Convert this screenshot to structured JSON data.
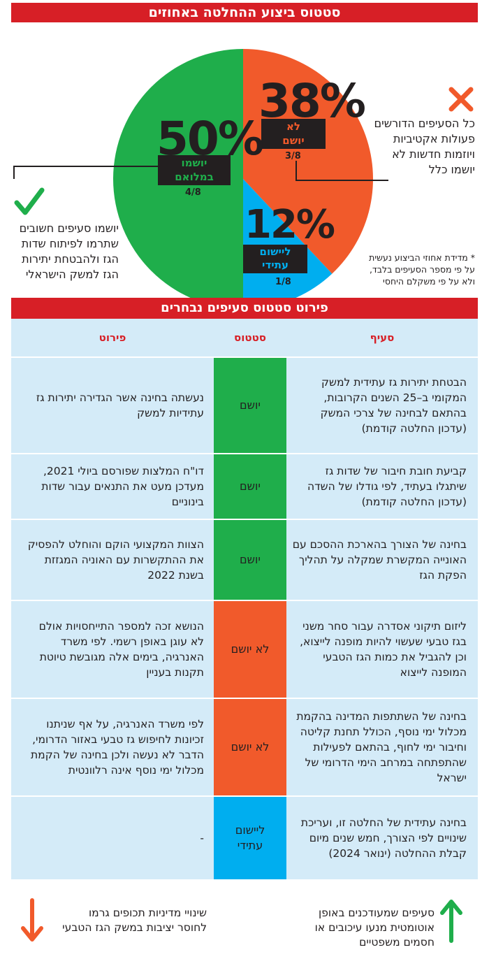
{
  "title": "סטטוס ביצוע ההחלטה באחוזים",
  "chart_data": {
    "type": "pie",
    "title": "סטטוס ביצוע ההחלטה באחוזים",
    "slices": [
      {
        "label": "לא יושם",
        "value": 38,
        "fraction": "3/8",
        "percent_label": "38%",
        "color": "#f15a2b"
      },
      {
        "label": "ליישום עתידי",
        "value": 12,
        "fraction": "1/8",
        "percent_label": "12%",
        "color": "#00aeef"
      },
      {
        "label": "יושמו במלואם",
        "value": 50,
        "fraction": "4/8",
        "percent_label": "50%",
        "color": "#1fae4b"
      }
    ]
  },
  "pie_labels": {
    "not_implemented": {
      "pct": "38%",
      "label_line1": "לא",
      "label_line2": "יושם",
      "frac": "3/8"
    },
    "future": {
      "pct": "12%",
      "label_line1": "ליישום",
      "label_line2": "עתידי",
      "frac": "1/8"
    },
    "full": {
      "pct": "50%",
      "label_line1": "יושמו",
      "label_line2": "במלואם",
      "frac": "4/8"
    }
  },
  "annotations": {
    "right_lines": [
      "כל הסעיפים הדורשים",
      "פעולות אקטיביות",
      "ויוזמות חדשות לא",
      "יושמו כלל"
    ],
    "left_lines": [
      "יושמו סעיפים חשובים",
      "שתרמו לפיתוח שדות",
      "הגז ולהבטחת יתירות",
      "הגז למשק הישראלי"
    ],
    "note_lines": [
      "* מדידת אחוזי הביצוע נעשית",
      "על פי מספר הסעיפים בלבד,",
      "ולא על פי משקלם היחסי"
    ],
    "x_icon": "x-mark-icon",
    "check_icon": "check-mark-icon"
  },
  "table": {
    "title": "פירוט סטטוס סעיפים נבחרים",
    "headers": {
      "clause": "סעיף",
      "status": "סטטוס",
      "detail": "פירוט"
    },
    "colors": {
      "done": "#1fae4b",
      "not": "#f15a2b",
      "future": "#00aeef"
    },
    "rows": [
      {
        "clause": "הבטחת יתירות גז עתידית למשק המקומי ב–25 השנים הקרובות, בהתאם לבחינה של צרכי המשק (עדכון החלטה קודמת)",
        "status": "יושם",
        "kind": "done",
        "detail": "נעשתה בחינה אשר הגדירה יתירות גז עתידיות למשק"
      },
      {
        "clause": "קביעת חובת חיבור של שדות גז שיתגלו בעתיד, לפי גודלו של השדה (עדכון החלטה קודמת)",
        "status": "יושם",
        "kind": "done",
        "detail": "דו\"ח המלצות שפורסם ביולי 2021, מעדכן מעט את התנאים עבור שדות בינוניים"
      },
      {
        "clause": "בחינה של הצורך בהארכת ההסכם עם האונייה המקשרת שמקלה על תהליך הפקת הגז",
        "status": "יושם",
        "kind": "done",
        "detail": "הצוות המקצועי הוקם והוחלט להפסיק את ההתקשרות עם האוניה המגזזת בשנת 2022"
      },
      {
        "clause": "ליזום תיקוני אסדרה עבור סחר משני בגז טבעי שעשוי להיות מופנה לייצוא, וכן להגביל את כמות הגז הטבעי המופנה לייצוא",
        "status": "לא יושם",
        "kind": "not",
        "detail": "הנושא זכה למספר התייחסויות אולם לא עוגן באופן רשמי. לפי משרד האנרגיה, בימים אלה מגובשת טיוטת תקנות בעניין"
      },
      {
        "clause": "בחינה של השתתפות המדינה בהקמת מכלול ימי נוסף, הכולל תחנת קליטה וחיבור ימי לחוף, בהתאם לפעילות שהתפתחה במרחב הימי הדרומי של ישראל",
        "status": "לא יושם",
        "kind": "not",
        "detail": "לפי משרד האנרגיה, על אף שניתנו זכיונות לחיפוש גז טבעי באזור הדרומי, הדבר לא נעשה ולכן בחינה של הקמת מכלול ימי נוסף אינה רלוונטית"
      },
      {
        "clause": "בחינה עתידית של החלטה זו, ועריכת שינויים לפי הצורך, חמש שנים מיום קבלת ההחלטה (ינואר 2024)",
        "status": "ליישום עתידי",
        "kind": "future",
        "detail": "-"
      }
    ]
  },
  "footer": {
    "right_lines": [
      "סעיפים שמעודכנים באופן",
      "אוטומטית מנעו עיכובים או",
      "חסמים משפטיים"
    ],
    "left_lines": [
      "שינויי מדיניות תכופים גרמו",
      "לחוסר יציבות במשק הגז הטבעי"
    ],
    "up_icon": "arrow-up-icon",
    "down_icon": "arrow-down-icon"
  }
}
